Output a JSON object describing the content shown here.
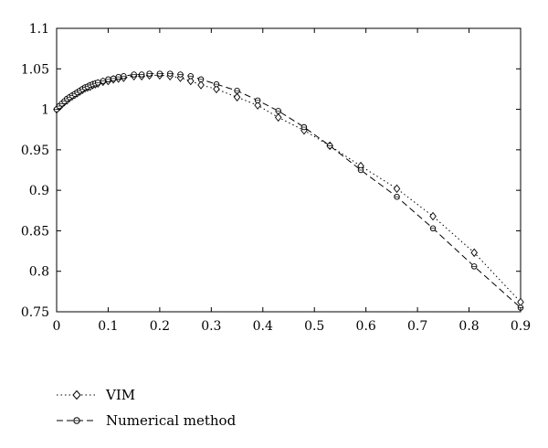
{
  "chart_data": {
    "type": "line",
    "title": "",
    "xlabel": "",
    "ylabel": "",
    "xlim": [
      0,
      0.9
    ],
    "ylim": [
      0.75,
      1.1
    ],
    "xticks": [
      "0",
      "0.1",
      "0.2",
      "0.3",
      "0.4",
      "0.5",
      "0.6",
      "0.7",
      "0.8",
      "0.9"
    ],
    "yticks": [
      "0.75",
      "0.8",
      "0.85",
      "0.9",
      "0.95",
      "1",
      "1.05",
      "1.1"
    ],
    "grid": false,
    "legend_position": "below",
    "series": [
      {
        "name": "VIM",
        "line_style": "dotted",
        "marker": "diamond",
        "x": [
          0,
          0.005,
          0.01,
          0.015,
          0.02,
          0.025,
          0.03,
          0.035,
          0.04,
          0.045,
          0.05,
          0.055,
          0.06,
          0.065,
          0.07,
          0.075,
          0.08,
          0.09,
          0.1,
          0.11,
          0.12,
          0.13,
          0.15,
          0.165,
          0.18,
          0.2,
          0.22,
          0.24,
          0.26,
          0.28,
          0.31,
          0.35,
          0.39,
          0.43,
          0.48,
          0.53,
          0.59,
          0.66,
          0.73,
          0.81,
          0.9
        ],
        "y": [
          1.0,
          1.003,
          1.006,
          1.009,
          1.011,
          1.014,
          1.016,
          1.018,
          1.02,
          1.022,
          1.024,
          1.026,
          1.027,
          1.028,
          1.03,
          1.031,
          1.032,
          1.034,
          1.035,
          1.037,
          1.038,
          1.039,
          1.041,
          1.041,
          1.042,
          1.042,
          1.041,
          1.039,
          1.035,
          1.03,
          1.025,
          1.015,
          1.005,
          0.99,
          0.974,
          0.955,
          0.93,
          0.902,
          0.868,
          0.823,
          0.762
        ]
      },
      {
        "name": "Numerical method",
        "line_style": "dashed",
        "marker": "circle",
        "x": [
          0,
          0.005,
          0.01,
          0.015,
          0.02,
          0.025,
          0.03,
          0.035,
          0.04,
          0.045,
          0.05,
          0.055,
          0.06,
          0.065,
          0.07,
          0.075,
          0.08,
          0.09,
          0.1,
          0.11,
          0.12,
          0.13,
          0.15,
          0.165,
          0.18,
          0.2,
          0.22,
          0.24,
          0.26,
          0.28,
          0.31,
          0.35,
          0.39,
          0.43,
          0.48,
          0.53,
          0.59,
          0.66,
          0.73,
          0.81,
          0.9
        ],
        "y": [
          1.0,
          1.004,
          1.007,
          1.01,
          1.013,
          1.015,
          1.017,
          1.019,
          1.021,
          1.023,
          1.025,
          1.027,
          1.028,
          1.03,
          1.031,
          1.032,
          1.033,
          1.035,
          1.037,
          1.038,
          1.04,
          1.041,
          1.043,
          1.043,
          1.044,
          1.044,
          1.044,
          1.043,
          1.041,
          1.037,
          1.031,
          1.023,
          1.011,
          0.998,
          0.978,
          0.955,
          0.925,
          0.892,
          0.853,
          0.806,
          0.755
        ]
      }
    ]
  },
  "legend": {
    "items": [
      {
        "label": "VIM"
      },
      {
        "label": "Numerical method"
      }
    ]
  }
}
